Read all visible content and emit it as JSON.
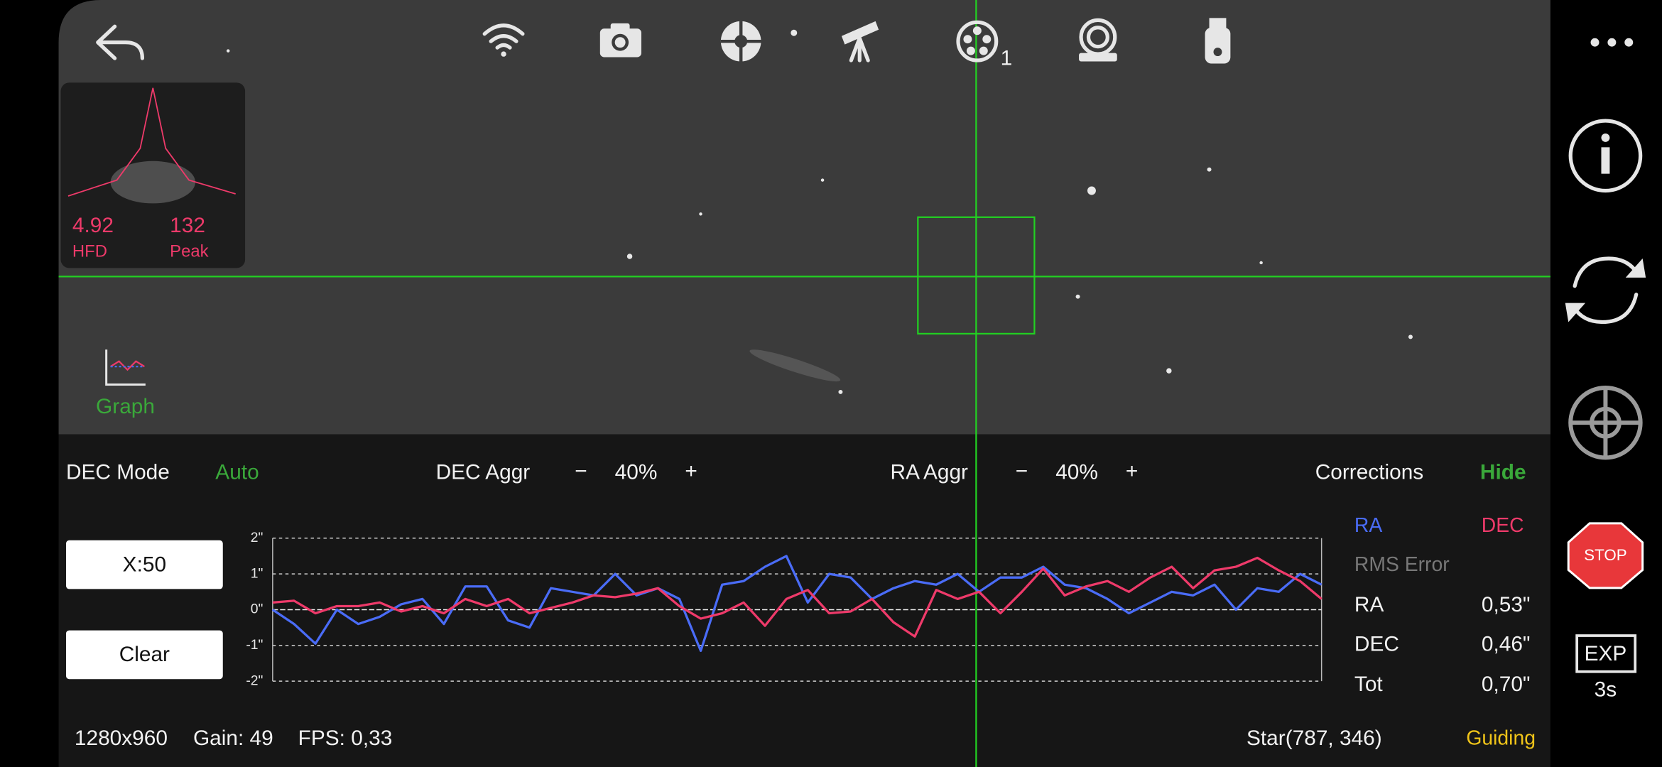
{
  "toolbar": {
    "filter_wheel_index": "1"
  },
  "star_profile": {
    "hfd_value": "4.92",
    "hfd_label": "HFD",
    "peak_value": "132",
    "peak_label": "Peak"
  },
  "graph_button": "Graph",
  "controls": {
    "dec_mode": {
      "label": "DEC Mode",
      "value": "Auto"
    },
    "dec_aggr": {
      "label": "DEC Aggr",
      "minus": "−",
      "value": "40%",
      "plus": "+"
    },
    "ra_aggr": {
      "label": "RA Aggr",
      "minus": "−",
      "value": "40%",
      "plus": "+"
    },
    "corrections": {
      "label": "Corrections",
      "value": "Hide"
    }
  },
  "buttons": {
    "scale": "X:50",
    "clear": "Clear"
  },
  "chart_data": {
    "type": "line",
    "ylim": [
      -2,
      2
    ],
    "yticks": [
      {
        "value": 2,
        "label": "2\""
      },
      {
        "value": 1,
        "label": "1\""
      },
      {
        "value": 0,
        "label": "0\""
      },
      {
        "value": -1,
        "label": "-1\""
      },
      {
        "value": -2,
        "label": "-2\""
      }
    ],
    "grid": true,
    "series": [
      {
        "name": "RA",
        "color": "#4a6cf7",
        "values": [
          0,
          -0.4,
          -0.95,
          0,
          -0.4,
          -0.2,
          0.15,
          0.3,
          -0.4,
          0.65,
          0.65,
          -0.3,
          -0.5,
          0.6,
          0.5,
          0.4,
          1.0,
          0.4,
          0.6,
          0.3,
          -1.15,
          0.7,
          0.8,
          1.2,
          1.5,
          0.2,
          1.0,
          0.9,
          0.3,
          0.6,
          0.8,
          0.7,
          1.0,
          0.5,
          0.9,
          0.9,
          1.2,
          0.7,
          0.6,
          0.3,
          -0.1,
          0.2,
          0.5,
          0.4,
          0.7,
          0,
          0.6,
          0.5,
          1.0,
          0.7
        ]
      },
      {
        "name": "DEC",
        "color": "#ee3a6a",
        "values": [
          0.2,
          0.25,
          -0.1,
          0.1,
          0.1,
          0.2,
          -0.05,
          0.1,
          -0.1,
          0.3,
          0.1,
          0.3,
          -0.1,
          0.05,
          0.2,
          0.4,
          0.35,
          0.45,
          0.6,
          0.1,
          -0.25,
          -0.1,
          0.2,
          -0.45,
          0.3,
          0.55,
          -0.1,
          -0.05,
          0.3,
          -0.35,
          -0.75,
          0.55,
          0.3,
          0.5,
          -0.1,
          0.5,
          1.15,
          0.4,
          0.65,
          0.8,
          0.5,
          0.9,
          1.2,
          0.6,
          1.1,
          1.2,
          1.45,
          1.1,
          0.8,
          0.3
        ]
      }
    ]
  },
  "rms": {
    "title": "RMS Error",
    "rows": [
      {
        "label": "RA",
        "value": "0,53\""
      },
      {
        "label": "DEC",
        "value": "0,46\""
      },
      {
        "label": "Tot",
        "value": "0,70\""
      }
    ]
  },
  "status": {
    "resolution": "1280x960",
    "gain": "Gain: 49",
    "fps": "FPS: 0,33",
    "star": "Star(787, 346)",
    "state": "Guiding"
  },
  "side": {
    "stop": "STOP",
    "exposure_label": "EXP",
    "exposure_time": "3s"
  }
}
